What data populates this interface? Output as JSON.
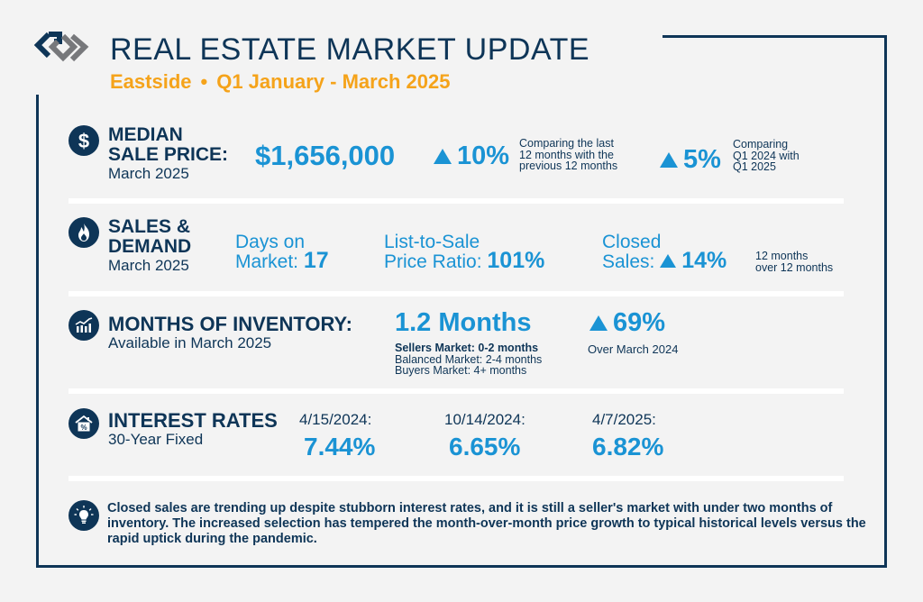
{
  "header": {
    "title": "REAL ESTATE MARKET UPDATE",
    "region": "Eastside",
    "separator": "•",
    "period": "Q1 January - March 2025"
  },
  "colors": {
    "navy": "#0e3557",
    "blue": "#1a93d4",
    "gold": "#f5a31a",
    "grey_logo": "#77787b",
    "background": "#f3f3f3"
  },
  "median_sale_price": {
    "icon": "dollar-icon",
    "heading_line1": "MEDIAN",
    "heading_line2": "SALE PRICE:",
    "subheading": "March 2025",
    "value": "$1,656,000",
    "change1": "10%",
    "change1_note_line1": "Comparing the last",
    "change1_note_line2": "12 months with the",
    "change1_note_line3": "previous 12 months",
    "change2": "5%",
    "change2_note_line1": "Comparing",
    "change2_note_line2": "Q1 2024 with",
    "change2_note_line3": "Q1 2025"
  },
  "sales_demand": {
    "icon": "flame-icon",
    "heading_line1": "SALES &",
    "heading_line2": "DEMAND",
    "subheading": "March 2025",
    "dom_label_line1": "Days on",
    "dom_label_line2": "Market:",
    "dom_value": "17",
    "ratio_label_line1": "List-to-Sale",
    "ratio_label_line2": "Price Ratio:",
    "ratio_value": "101%",
    "closed_label_line1": "Closed",
    "closed_label_line2": "Sales:",
    "closed_value": "14%",
    "closed_note_line1": "12 months",
    "closed_note_line2": "over 12 months"
  },
  "inventory": {
    "icon": "bar-chart-icon",
    "heading": "MONTHS OF INVENTORY:",
    "subheading": "Available in March 2025",
    "value": "1.2 Months",
    "legend_sellers": "Sellers Market: 0-2 months",
    "legend_balanced": "Balanced Market: 2-4 months",
    "legend_buyers": "Buyers Market: 4+ months",
    "change": "69%",
    "change_note": "Over March 2024"
  },
  "interest_rates": {
    "icon": "house-percent-icon",
    "heading": "INTEREST RATES",
    "subheading": "30-Year Fixed",
    "rates": [
      {
        "date": "4/15/2024:",
        "value": "7.44%"
      },
      {
        "date": "10/14/2024:",
        "value": "6.65%"
      },
      {
        "date": "4/7/2025:",
        "value": "6.82%"
      }
    ]
  },
  "summary": {
    "icon": "lightbulb-icon",
    "text": "Closed sales are trending up despite stubborn interest rates, and it is still a seller's market with under two months of inventory. The increased selection has tempered the month-over-month price growth to typical historical levels versus the rapid uptick during the pandemic."
  }
}
